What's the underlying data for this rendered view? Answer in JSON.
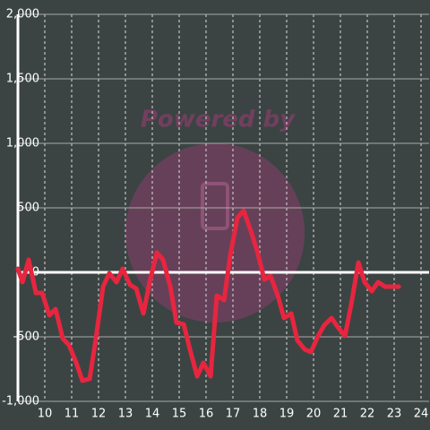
{
  "chart_data": {
    "type": "line",
    "watermark": "Powered by",
    "x": [
      9.0,
      9.17,
      9.4,
      9.67,
      9.9,
      10.17,
      10.4,
      10.67,
      10.9,
      11.17,
      11.4,
      11.67,
      11.9,
      12.17,
      12.4,
      12.67,
      12.9,
      13.17,
      13.4,
      13.67,
      13.9,
      14.17,
      14.4,
      14.67,
      14.9,
      15.17,
      15.4,
      15.67,
      15.9,
      16.17,
      16.4,
      16.67,
      16.9,
      17.17,
      17.4,
      17.67,
      17.9,
      18.17,
      18.4,
      18.67,
      18.9,
      19.17,
      19.4,
      19.67,
      19.9,
      20.17,
      20.4,
      20.67,
      20.9,
      21.17,
      21.4,
      21.67,
      21.9,
      22.17,
      22.4,
      22.67,
      22.9,
      23.17
    ],
    "series": [
      {
        "color": "#e8253f",
        "values": [
          28,
          -76,
          97,
          -160,
          -160,
          -333,
          -285,
          -514,
          -563,
          -701,
          -840,
          -826,
          -514,
          -111,
          -7,
          -76,
          28,
          -97,
          -125,
          -319,
          -76,
          153,
          97,
          -111,
          -389,
          -403,
          -597,
          -806,
          -701,
          -806,
          -181,
          -215,
          132,
          424,
          479,
          319,
          167,
          -56,
          -28,
          -181,
          -354,
          -319,
          -528,
          -597,
          -618,
          -493,
          -410,
          -354,
          -424,
          -493,
          -250,
          76,
          -76,
          -146,
          -76,
          -111,
          -111,
          -111
        ]
      }
    ],
    "xlim": [
      9,
      24.3
    ],
    "xticks": [
      10,
      11,
      12,
      13,
      14,
      15,
      16,
      17,
      18,
      19,
      20,
      21,
      22,
      23,
      24
    ],
    "ylim": [
      -1000,
      2000
    ],
    "yticks": [
      {
        "value": -1000,
        "label": "-1,000"
      },
      -500,
      0,
      500,
      {
        "value": 1000,
        "label": "1,000"
      },
      {
        "value": 1500,
        "label": "1,500"
      },
      {
        "value": 2000,
        "label": "2,000"
      }
    ],
    "grid": true
  }
}
